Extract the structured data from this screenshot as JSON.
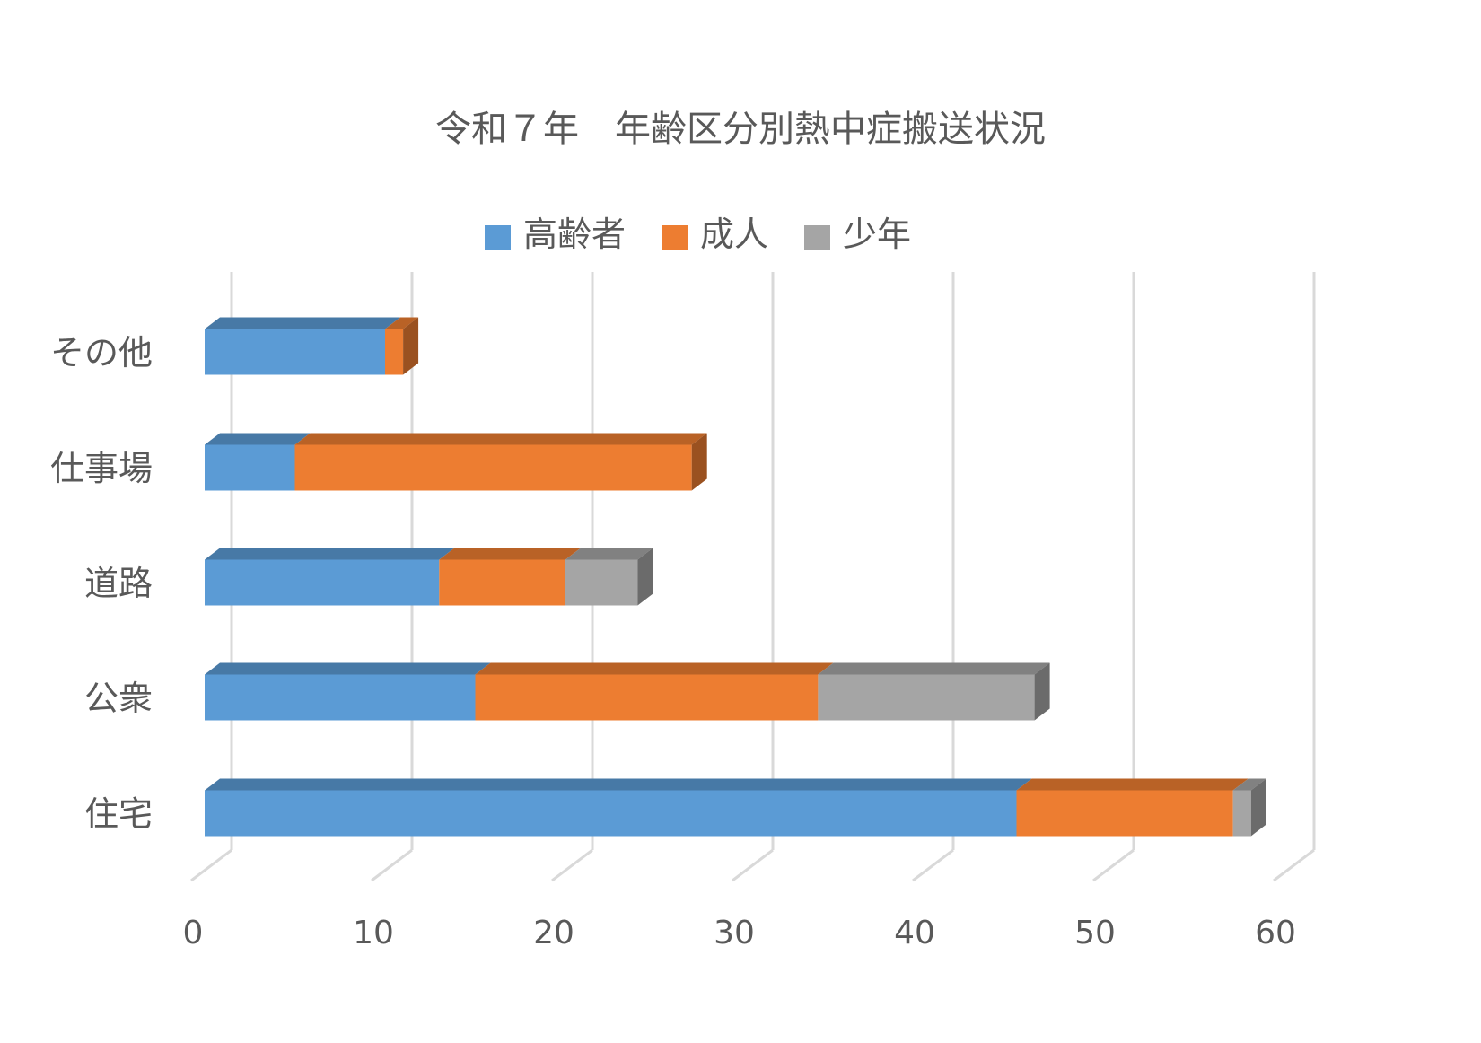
{
  "chart_data": {
    "type": "bar",
    "orientation": "horizontal",
    "stacked": true,
    "style": "3d",
    "title": "令和７年　年齢区分別熱中症搬送状況",
    "categories": [
      "住宅",
      "公衆",
      "道路",
      "仕事場",
      "その他"
    ],
    "series": [
      {
        "name": "高齢者",
        "color": "#5B9BD5",
        "values": [
          45,
          15,
          13,
          5,
          10
        ]
      },
      {
        "name": "成人",
        "color": "#ED7D31",
        "values": [
          12,
          19,
          7,
          22,
          1
        ]
      },
      {
        "name": "少年",
        "color": "#A5A5A5",
        "values": [
          1,
          12,
          4,
          0,
          0
        ]
      }
    ],
    "xlim": [
      0,
      60
    ],
    "xticks": [
      "0",
      "10",
      "20",
      "30",
      "40",
      "50",
      "60"
    ],
    "grid": true,
    "legend": "top"
  }
}
